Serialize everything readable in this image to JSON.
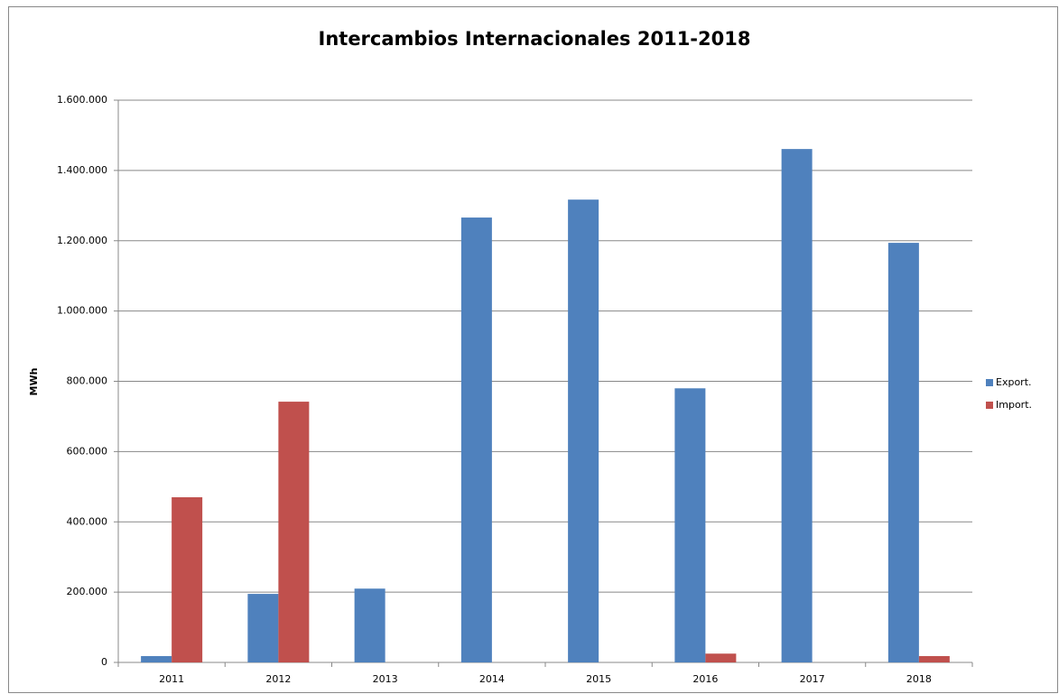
{
  "chart_data": {
    "type": "bar",
    "title": "Intercambios Internacionales  2011-2018",
    "y_label": "MWh",
    "categories": [
      "2011",
      "2012",
      "2013",
      "2014",
      "2015",
      "2016",
      "2017",
      "2018"
    ],
    "series": [
      {
        "name": "Export.",
        "color": "#4f81bd",
        "values": [
          18000,
          195000,
          210000,
          1266000,
          1317000,
          780000,
          1461000,
          1194000
        ]
      },
      {
        "name": "Import.",
        "color": "#c0504d",
        "values": [
          470000,
          742000,
          0,
          0,
          0,
          25000,
          0,
          18000
        ]
      }
    ],
    "ylim": [
      0,
      1600000
    ],
    "yticks": [
      0,
      {
        "value": 200000,
        "label": "200.000"
      },
      {
        "value": 400000,
        "label": "400.000"
      },
      {
        "value": 600000,
        "label": "600.000"
      },
      {
        "value": 800000,
        "label": "800.000"
      },
      {
        "value": 1000000,
        "label": "1.000.000"
      },
      {
        "value": 1200000,
        "label": "1.200.000"
      },
      {
        "value": 1400000,
        "label": "1.400.000"
      },
      {
        "value": 1600000,
        "label": "1.600.000"
      }
    ],
    "grid": true,
    "legend": "right"
  }
}
